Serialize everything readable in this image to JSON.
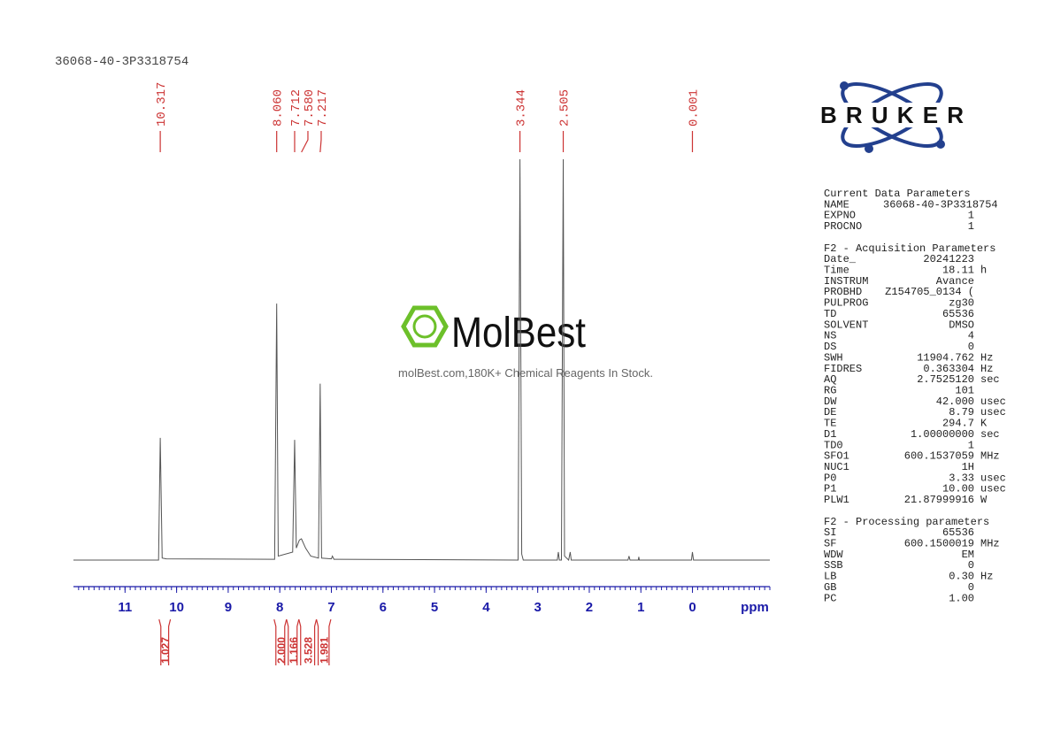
{
  "header": "36068-40-3P3318754",
  "chart_data": {
    "type": "nmr",
    "xlabel": "ppm",
    "xlim": [
      12,
      -1.5
    ],
    "xticks": [
      11,
      10,
      9,
      8,
      7,
      6,
      5,
      4,
      3,
      2,
      1,
      0
    ],
    "ylim": [
      0,
      100
    ],
    "color": "#555555",
    "label_color": "#cc3333",
    "axis_color": "#1a1aa8",
    "spectrum": {
      "x": [
        12,
        10.35,
        10.317,
        10.28,
        10.2,
        8.1,
        8.06,
        8.03,
        7.75,
        7.712,
        7.68,
        7.62,
        7.58,
        7.5,
        7.4,
        7.25,
        7.217,
        7.19,
        7.0,
        6.98,
        6.95,
        3.38,
        3.344,
        3.31,
        3.28,
        2.62,
        2.6,
        2.58,
        2.54,
        2.505,
        2.48,
        2.4,
        2.37,
        2.35,
        1.25,
        1.23,
        1.21,
        1.05,
        1.04,
        1.03,
        0.02,
        0.001,
        -0.02,
        -1.5
      ],
      "values": [
        0,
        0,
        30.5,
        0.5,
        0.3,
        0.2,
        64,
        1,
        2,
        30,
        3,
        5,
        5.3,
        3,
        1,
        0.5,
        44,
        0.5,
        0.3,
        1,
        0.2,
        0,
        100,
        1.5,
        0,
        0,
        2,
        0,
        0,
        100,
        1,
        0,
        2,
        0,
        0,
        1,
        0,
        0,
        0.8,
        0,
        0,
        2,
        0,
        0
      ]
    },
    "peaks": {
      "values": [
        10.317,
        8.06,
        7.712,
        7.58,
        7.217,
        3.344,
        2.505,
        0.001
      ],
      "value_labels": [
        "10.317",
        "8.060",
        "7.712",
        "7.580",
        "7.217",
        "3.344",
        "2.505",
        "0.001"
      ]
    },
    "integrals": {
      "values": [
        1.027,
        2,
        1.166,
        3.528,
        1.981
      ],
      "value_labels": [
        "1.027",
        "2.000",
        "1.166",
        "3.528",
        "1.981"
      ],
      "ranges": [
        [
          10.34,
          10.12
        ],
        [
          8.11,
          7.87
        ],
        [
          7.87,
          7.63
        ],
        [
          7.63,
          7.29
        ],
        [
          7.29,
          7.01
        ]
      ]
    }
  },
  "logo": "BRUKER",
  "watermark": {
    "brand": "MolBest",
    "tagline": "molBest.com,180K+ Chemical Reagents In Stock."
  },
  "parameters": [
    {
      "title": "Current Data Parameters",
      "rows": [
        [
          "NAME",
          "36068-40-3P3318754"
        ],
        [
          "EXPNO",
          "1"
        ],
        [
          "PROCNO",
          "1"
        ]
      ]
    },
    {
      "title": "F2 - Acquisition Parameters",
      "rows": [
        [
          "Date_",
          "20241223"
        ],
        [
          "Time",
          "18.11",
          "h"
        ],
        [
          "INSTRUM",
          "Avance"
        ],
        [
          "PROBHD",
          "Z154705_0134 ("
        ],
        [
          "PULPROG",
          "zg30"
        ],
        [
          "TD",
          "65536"
        ],
        [
          "SOLVENT",
          "DMSO"
        ],
        [
          "NS",
          "4"
        ],
        [
          "DS",
          "0"
        ],
        [
          "SWH",
          "11904.762",
          "Hz"
        ],
        [
          "FIDRES",
          "0.363304",
          "Hz"
        ],
        [
          "AQ",
          "2.7525120",
          "sec"
        ],
        [
          "RG",
          "101"
        ],
        [
          "DW",
          "42.000",
          "usec"
        ],
        [
          "DE",
          "8.79",
          "usec"
        ],
        [
          "TE",
          "294.7",
          "K"
        ],
        [
          "D1",
          "1.00000000",
          "sec"
        ],
        [
          "TD0",
          "1"
        ],
        [
          "SFO1",
          "600.1537059",
          "MHz"
        ],
        [
          "NUC1",
          "1H"
        ],
        [
          "P0",
          "3.33",
          "usec"
        ],
        [
          "P1",
          "10.00",
          "usec"
        ],
        [
          "PLW1",
          "21.87999916",
          "W"
        ]
      ]
    },
    {
      "title": "F2 - Processing parameters",
      "rows": [
        [
          "SI",
          "65536"
        ],
        [
          "SF",
          "600.1500019",
          "MHz"
        ],
        [
          "WDW",
          "EM"
        ],
        [
          "SSB",
          "0"
        ],
        [
          "LB",
          "0.30",
          "Hz"
        ],
        [
          "GB",
          "0"
        ],
        [
          "PC",
          "1.00"
        ]
      ]
    }
  ]
}
